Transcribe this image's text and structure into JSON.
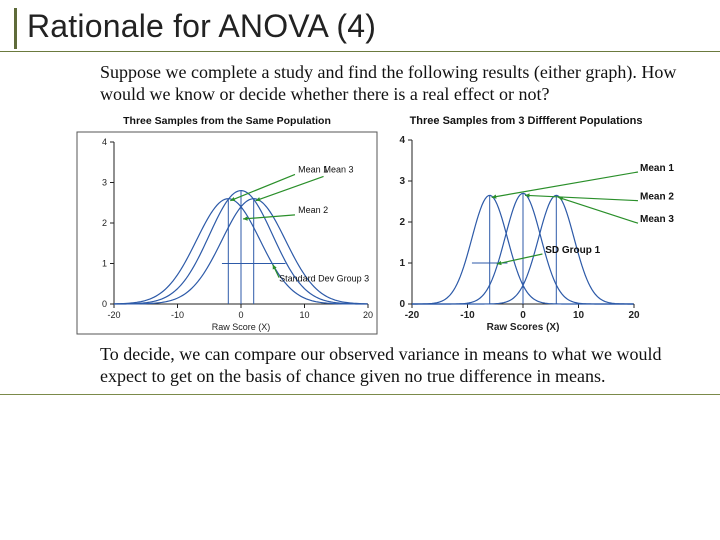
{
  "title": "Rationale for ANOVA (4)",
  "intro": "Suppose we complete a study and find the following results (either graph). How would we know or decide whether there is a real effect or not?",
  "concl": "To decide, we can compare our observed variance in means to what we would expect to get on the basis of chance given no true difference in means.",
  "colors": {
    "accent": "#5f6b3a",
    "underline": "#6b7a3e",
    "curve": "#2d5aa8",
    "arrow": "#2a8f2a",
    "axis": "#222222",
    "bg": "#ffffff"
  },
  "chartA": {
    "type": "line",
    "title": "Three Samples from the Same Population",
    "xlabel": "Raw Score (X)",
    "xlim": [
      -20,
      20
    ],
    "xticks": [
      -20,
      -10,
      0,
      10,
      20
    ],
    "ylim": [
      0,
      4
    ],
    "yticks": [
      0,
      1,
      2,
      3,
      4
    ],
    "means": [
      -2,
      0,
      2
    ],
    "sd": 5,
    "peak_heights": [
      2.6,
      2.8,
      2.6
    ],
    "line_color": "#2d5aa8",
    "line_width": 1.2,
    "background_color": "#ffffff",
    "axis_color": "#222222",
    "tick_fontsize": 9,
    "title_fontsize": 10.5,
    "annotations": {
      "mean1": "Mean 1",
      "mean3": "Mean 3",
      "mean2": "Mean 2",
      "sd": "Standard Dev Group 3"
    },
    "arrow_color": "#2a8f2a",
    "sd_bar_y": 1.0,
    "has_outer_frame": true
  },
  "chartB": {
    "type": "line",
    "title": "Three Samples from 3 Diffferent Populations",
    "xlabel": "Raw Scores (X)",
    "xlim": [
      -20,
      20
    ],
    "xticks": [
      -20,
      -10,
      0,
      10,
      20
    ],
    "ylim": [
      0,
      4
    ],
    "yticks": [
      0,
      1,
      2,
      3,
      4
    ],
    "means": [
      -6,
      0,
      6
    ],
    "sd": 3.2,
    "peak_heights": [
      2.65,
      2.7,
      2.65
    ],
    "line_color": "#2d5aa8",
    "line_width": 1.2,
    "background_color": "#ffffff",
    "axis_color": "#222222",
    "tick_fontsize": 10,
    "title_fontsize": 11,
    "annotations": {
      "mean1": "Mean 1",
      "mean2": "Mean 2",
      "mean3": "Mean 3",
      "sd": "SD Group 1"
    },
    "arrow_color": "#2a8f2a",
    "sd_bar_y": 1.0,
    "label_fontweight": 600,
    "has_outer_frame": false
  }
}
